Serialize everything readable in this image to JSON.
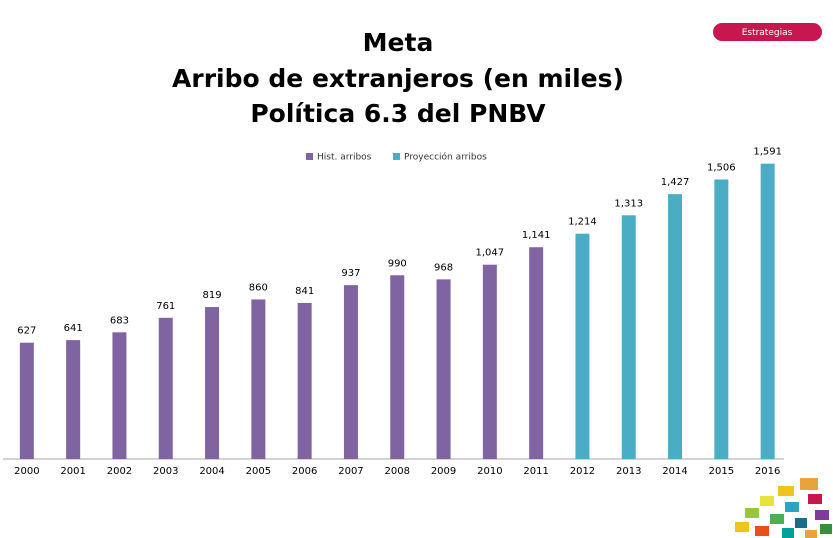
{
  "header": {
    "badge": "Estrategias"
  },
  "chart_data": {
    "type": "bar",
    "title": [
      "Meta",
      "Arribo de extranjeros (en miles)",
      "Política 6.3 del PNBV"
    ],
    "categories": [
      "2000",
      "2001",
      "2002",
      "2003",
      "2004",
      "2005",
      "2006",
      "2007",
      "2008",
      "2009",
      "2010",
      "2011",
      "2012",
      "2013",
      "2014",
      "2015",
      "2016"
    ],
    "series": [
      {
        "name": "Hist. arribos",
        "color": "#8064a2",
        "values": [
          627,
          641,
          683,
          761,
          819,
          860,
          841,
          937,
          990,
          968,
          1047,
          1141,
          null,
          null,
          null,
          null,
          null
        ],
        "value_labels": [
          "627",
          "641",
          "683",
          "761",
          "819",
          "860",
          "841",
          "937",
          "990",
          "968",
          "1,047",
          "1,141",
          null,
          null,
          null,
          null,
          null
        ]
      },
      {
        "name": "Proyección arribos",
        "color": "#4bacc6",
        "values": [
          null,
          null,
          null,
          null,
          null,
          null,
          null,
          null,
          null,
          null,
          null,
          null,
          1214,
          1313,
          1427,
          1506,
          1591
        ],
        "value_labels": [
          null,
          null,
          null,
          null,
          null,
          null,
          null,
          null,
          null,
          null,
          null,
          null,
          "1,214",
          "1,313",
          "1,427",
          "1,506",
          "1,591"
        ]
      }
    ],
    "ylim": [
      200,
      1600
    ],
    "legend": "top"
  }
}
